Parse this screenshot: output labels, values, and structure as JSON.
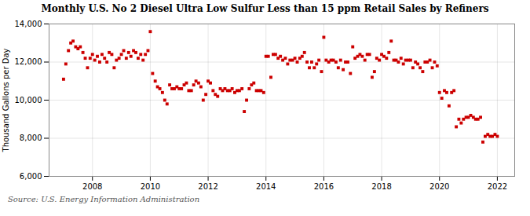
{
  "chart_data": {
    "type": "scatter",
    "title": "Monthly U.S. No 2 Diesel Ultra Low Sulfur Less than 15 ppm Retail Sales by Refiners",
    "ylabel": "Thousand Gallons per Day",
    "source": "Source: U.S. Energy Information Administration",
    "color": "#cc0000",
    "marker": "square",
    "grid": true,
    "xlim": [
      2006.5,
      2022.6
    ],
    "xticks": [
      2008,
      2010,
      2012,
      2014,
      2016,
      2018,
      2020,
      2022
    ],
    "ylim": [
      6000,
      14000
    ],
    "yticks": [
      {
        "value": 6000,
        "label": "6,000"
      },
      {
        "value": 8000,
        "label": "8,000"
      },
      {
        "value": 10000,
        "label": "10,000"
      },
      {
        "value": 12000,
        "label": "12,000"
      },
      {
        "value": 14000,
        "label": "14,000"
      }
    ],
    "x": [
      2007.0,
      2007.08,
      2007.17,
      2007.25,
      2007.33,
      2007.42,
      2007.5,
      2007.58,
      2007.67,
      2007.75,
      2007.83,
      2007.92,
      2008.0,
      2008.08,
      2008.17,
      2008.25,
      2008.33,
      2008.42,
      2008.5,
      2008.58,
      2008.67,
      2008.75,
      2008.83,
      2008.92,
      2009.0,
      2009.08,
      2009.17,
      2009.25,
      2009.33,
      2009.42,
      2009.5,
      2009.58,
      2009.67,
      2009.75,
      2009.83,
      2009.92,
      2010.0,
      2010.08,
      2010.17,
      2010.25,
      2010.33,
      2010.42,
      2010.5,
      2010.58,
      2010.67,
      2010.75,
      2010.83,
      2010.92,
      2011.0,
      2011.08,
      2011.17,
      2011.25,
      2011.33,
      2011.42,
      2011.5,
      2011.58,
      2011.67,
      2011.75,
      2011.83,
      2011.92,
      2012.0,
      2012.08,
      2012.17,
      2012.25,
      2012.33,
      2012.42,
      2012.5,
      2012.58,
      2012.67,
      2012.75,
      2012.83,
      2012.92,
      2013.0,
      2013.08,
      2013.17,
      2013.25,
      2013.33,
      2013.42,
      2013.5,
      2013.58,
      2013.67,
      2013.75,
      2013.83,
      2013.92,
      2014.0,
      2014.08,
      2014.17,
      2014.25,
      2014.33,
      2014.42,
      2014.5,
      2014.58,
      2014.67,
      2014.75,
      2014.83,
      2014.92,
      2015.0,
      2015.08,
      2015.17,
      2015.25,
      2015.33,
      2015.42,
      2015.5,
      2015.58,
      2015.67,
      2015.75,
      2015.83,
      2015.92,
      2016.0,
      2016.08,
      2016.17,
      2016.25,
      2016.33,
      2016.42,
      2016.5,
      2016.58,
      2016.67,
      2016.75,
      2016.83,
      2016.92,
      2017.0,
      2017.08,
      2017.17,
      2017.25,
      2017.33,
      2017.42,
      2017.5,
      2017.58,
      2017.67,
      2017.75,
      2017.83,
      2017.92,
      2018.0,
      2018.08,
      2018.17,
      2018.25,
      2018.33,
      2018.42,
      2018.5,
      2018.58,
      2018.67,
      2018.75,
      2018.83,
      2018.92,
      2019.0,
      2019.08,
      2019.17,
      2019.25,
      2019.33,
      2019.42,
      2019.5,
      2019.58,
      2019.67,
      2019.75,
      2019.83,
      2019.92,
      2020.0,
      2020.08,
      2020.17,
      2020.25,
      2020.33,
      2020.42,
      2020.5,
      2020.58,
      2020.67,
      2020.75,
      2020.83,
      2020.92,
      2021.0,
      2021.08,
      2021.17,
      2021.25,
      2021.33,
      2021.42,
      2021.5,
      2021.58,
      2021.67,
      2021.75,
      2021.83,
      2021.92,
      2022.0
    ],
    "values": [
      11100,
      11900,
      12600,
      13000,
      13100,
      12800,
      12700,
      12800,
      12500,
      12200,
      11700,
      12200,
      12400,
      12100,
      12300,
      12000,
      12400,
      12200,
      12000,
      12500,
      12400,
      11700,
      12100,
      12200,
      12400,
      12600,
      12200,
      12500,
      12300,
      12600,
      12500,
      12200,
      12400,
      12100,
      12400,
      12600,
      13600,
      11400,
      11000,
      10700,
      10600,
      10400,
      10000,
      9800,
      10800,
      10600,
      10600,
      10700,
      10600,
      10600,
      10800,
      10900,
      10500,
      10500,
      10800,
      11000,
      10900,
      10700,
      10000,
      10300,
      11000,
      10900,
      10500,
      10300,
      10200,
      10600,
      10500,
      10600,
      10500,
      10500,
      10600,
      10400,
      10500,
      10500,
      10600,
      9400,
      10000,
      10600,
      10800,
      10900,
      10500,
      10500,
      10500,
      10400,
      12300,
      12300,
      11200,
      12400,
      12400,
      12200,
      12300,
      12100,
      12200,
      11900,
      12100,
      12100,
      12200,
      12000,
      12200,
      12300,
      12500,
      12000,
      11700,
      12000,
      11700,
      11900,
      12100,
      11500,
      13300,
      12100,
      12000,
      12100,
      12100,
      12000,
      11700,
      12100,
      11600,
      12000,
      12000,
      11400,
      12800,
      12200,
      12300,
      12400,
      12300,
      12100,
      12400,
      12400,
      11200,
      11500,
      12200,
      12100,
      12400,
      12300,
      12200,
      12500,
      13100,
      12100,
      12100,
      12000,
      12200,
      11900,
      12100,
      12100,
      12100,
      11700,
      12000,
      11900,
      11700,
      11500,
      12000,
      12000,
      12100,
      11700,
      12000,
      11800,
      10400,
      10100,
      10500,
      10400,
      9700,
      10400,
      10500,
      8600,
      9000,
      8800,
      9000,
      9100,
      9100,
      9200,
      9100,
      9000,
      9000,
      9100,
      7800,
      8100,
      8200,
      8100,
      8100,
      8200,
      8100
    ]
  }
}
